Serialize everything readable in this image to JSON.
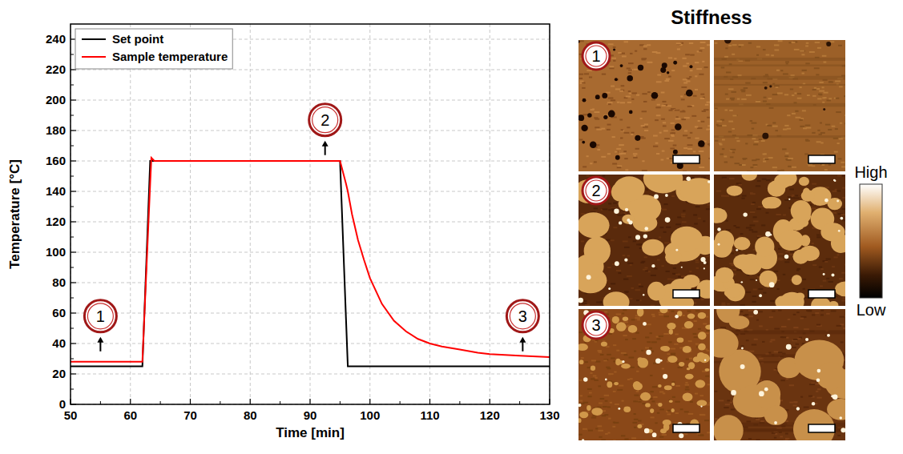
{
  "chart_data": {
    "type": "line",
    "x_label": "Time [min]",
    "y_label": "Temperature [°C]",
    "x": [
      50,
      62,
      63.3,
      63.5,
      64,
      95,
      96,
      96.3,
      97,
      98,
      99,
      100,
      102,
      104,
      106,
      108,
      110,
      112,
      115,
      118,
      120,
      125,
      130
    ],
    "series": [
      {
        "name": "Set point",
        "color": "#000000",
        "line_style": "solid",
        "values": [
          25,
          25,
          160,
          160,
          160,
          160,
          56,
          25,
          25,
          25,
          25,
          25,
          25,
          25,
          25,
          25,
          25,
          25,
          25,
          25,
          25,
          25,
          25
        ]
      },
      {
        "name": "Sample temperature",
        "color": "#ff0000",
        "line_style": "solid",
        "values": [
          28,
          28,
          145,
          162,
          160,
          160,
          145,
          140,
          125,
          108,
          95,
          83,
          66,
          55,
          48,
          43,
          40,
          38,
          36,
          34,
          33,
          32,
          31
        ]
      }
    ],
    "xlim": [
      50,
      130
    ],
    "xticks": [
      50,
      60,
      70,
      80,
      90,
      100,
      110,
      120,
      130
    ],
    "ylim": [
      0,
      250
    ],
    "yticks": [
      0,
      20,
      40,
      60,
      80,
      100,
      120,
      140,
      160,
      180,
      200,
      220,
      240
    ],
    "grid": true,
    "legend": "upper left",
    "annotations": [
      {
        "text": "1",
        "x": 55,
        "y": 58
      },
      {
        "text": "2",
        "x": 92.5,
        "y": 187
      },
      {
        "text": "3",
        "x": 125.5,
        "y": 58
      }
    ]
  },
  "figure": {
    "title": "Stiffness",
    "panels": [
      {
        "label": "1"
      },
      {
        "label": "2"
      },
      {
        "label": "3"
      }
    ],
    "colorbar": {
      "high": "High",
      "low": "Low"
    }
  }
}
